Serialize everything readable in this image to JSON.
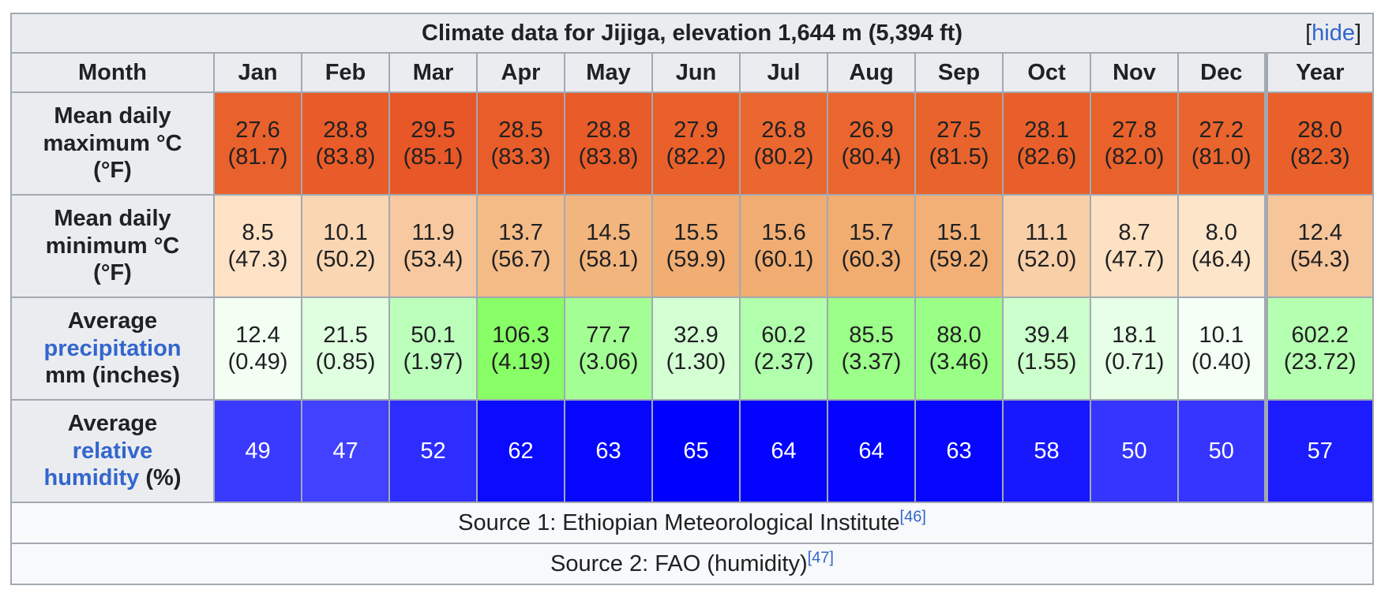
{
  "title": "Climate data for Jijiga, elevation 1,644 m (5,394 ft)",
  "hide_toggle": {
    "open": "[",
    "label": "hide",
    "close": "]"
  },
  "month_header": "Month",
  "months": [
    "Jan",
    "Feb",
    "Mar",
    "Apr",
    "May",
    "Jun",
    "Jul",
    "Aug",
    "Sep",
    "Oct",
    "Nov",
    "Dec"
  ],
  "year_header": "Year",
  "rows": [
    {
      "label_lines": [
        "Mean daily",
        "maximum °C",
        "(°F)"
      ],
      "link_lines": [],
      "values": [
        {
          "v": "27.6",
          "alt": "(81.7)",
          "bg": "#e9612c"
        },
        {
          "v": "28.8",
          "alt": "(83.8)",
          "bg": "#e95b29"
        },
        {
          "v": "29.5",
          "alt": "(85.1)",
          "bg": "#e85727"
        },
        {
          "v": "28.5",
          "alt": "(83.3)",
          "bg": "#e95d2a"
        },
        {
          "v": "28.8",
          "alt": "(83.8)",
          "bg": "#e95b29"
        },
        {
          "v": "27.9",
          "alt": "(82.2)",
          "bg": "#e9602b"
        },
        {
          "v": "26.8",
          "alt": "(80.2)",
          "bg": "#ea672f"
        },
        {
          "v": "26.9",
          "alt": "(80.4)",
          "bg": "#ea662e"
        },
        {
          "v": "27.5",
          "alt": "(81.5)",
          "bg": "#e9632c"
        },
        {
          "v": "28.1",
          "alt": "(82.6)",
          "bg": "#e95f2b"
        },
        {
          "v": "27.8",
          "alt": "(82.0)",
          "bg": "#e9612b"
        },
        {
          "v": "27.2",
          "alt": "(81.0)",
          "bg": "#ea642d"
        }
      ],
      "year": {
        "v": "28.0",
        "alt": "(82.3)",
        "bg": "#e9602b"
      }
    },
    {
      "label_lines": [
        "Mean daily",
        "minimum °C",
        "(°F)"
      ],
      "link_lines": [],
      "values": [
        {
          "v": "8.5",
          "alt": "(47.3)",
          "bg": "#fde2c6"
        },
        {
          "v": "10.1",
          "alt": "(50.2)",
          "bg": "#fad6b2"
        },
        {
          "v": "11.9",
          "alt": "(53.4)",
          "bg": "#f8c9a0"
        },
        {
          "v": "13.7",
          "alt": "(56.7)",
          "bg": "#f4bb87"
        },
        {
          "v": "14.5",
          "alt": "(58.1)",
          "bg": "#f2b57d"
        },
        {
          "v": "15.5",
          "alt": "(59.9)",
          "bg": "#f1ad72"
        },
        {
          "v": "15.6",
          "alt": "(60.1)",
          "bg": "#f1ac71"
        },
        {
          "v": "15.7",
          "alt": "(60.3)",
          "bg": "#f1ac70"
        },
        {
          "v": "15.1",
          "alt": "(59.2)",
          "bg": "#f2b076"
        },
        {
          "v": "11.1",
          "alt": "(52.0)",
          "bg": "#f9cfa8"
        },
        {
          "v": "8.7",
          "alt": "(47.7)",
          "bg": "#fde1c3"
        },
        {
          "v": "8.0",
          "alt": "(46.4)",
          "bg": "#fde5ca"
        }
      ],
      "year": {
        "v": "12.4",
        "alt": "(54.3)",
        "bg": "#f7c59a"
      }
    },
    {
      "label_lines": [
        "Average",
        "precipitation",
        "mm (inches)"
      ],
      "link_lines": [
        1
      ],
      "values": [
        {
          "v": "12.4",
          "alt": "(0.49)",
          "bg": "#f2fff2"
        },
        {
          "v": "21.5",
          "alt": "(0.85)",
          "bg": "#e0ffe0"
        },
        {
          "v": "50.1",
          "alt": "(1.97)",
          "bg": "#bbffbb"
        },
        {
          "v": "106.3",
          "alt": "(4.19)",
          "bg": "#88ff66"
        },
        {
          "v": "77.7",
          "alt": "(3.06)",
          "bg": "#a3ff93"
        },
        {
          "v": "32.9",
          "alt": "(1.30)",
          "bg": "#d3ffd3"
        },
        {
          "v": "60.2",
          "alt": "(2.37)",
          "bg": "#b1ffac"
        },
        {
          "v": "85.5",
          "alt": "(3.37)",
          "bg": "#9cff8a"
        },
        {
          "v": "88.0",
          "alt": "(3.46)",
          "bg": "#9aff86"
        },
        {
          "v": "39.4",
          "alt": "(1.55)",
          "bg": "#cbffcb"
        },
        {
          "v": "18.1",
          "alt": "(0.71)",
          "bg": "#e7ffe7"
        },
        {
          "v": "10.1",
          "alt": "(0.40)",
          "bg": "#f5fff5"
        }
      ],
      "year": {
        "v": "602.2",
        "alt": "(23.72)",
        "bg": "#b5ffb0"
      }
    },
    {
      "label_lines": [
        "Average",
        "relative",
        "humidity (%)"
      ],
      "link_lines": [
        1,
        2
      ],
      "link_split": {
        "2": [
          "humidity",
          " (%)"
        ]
      },
      "values": [
        {
          "v": "49",
          "alt": "",
          "bg": "#3a3aff"
        },
        {
          "v": "47",
          "alt": "",
          "bg": "#4141ff"
        },
        {
          "v": "52",
          "alt": "",
          "bg": "#2d2dff"
        },
        {
          "v": "62",
          "alt": "",
          "bg": "#0b0bff"
        },
        {
          "v": "63",
          "alt": "",
          "bg": "#0707ff"
        },
        {
          "v": "65",
          "alt": "",
          "bg": "#0000ff"
        },
        {
          "v": "64",
          "alt": "",
          "bg": "#0303ff"
        },
        {
          "v": "64",
          "alt": "",
          "bg": "#0303ff"
        },
        {
          "v": "63",
          "alt": "",
          "bg": "#0707ff"
        },
        {
          "v": "58",
          "alt": "",
          "bg": "#1818ff"
        },
        {
          "v": "50",
          "alt": "",
          "bg": "#3535ff"
        },
        {
          "v": "50",
          "alt": "",
          "bg": "#3535ff"
        }
      ],
      "year": {
        "v": "57",
        "alt": "",
        "bg": "#1c1cff"
      }
    }
  ],
  "sources": [
    {
      "text": "Source 1: Ethiopian Meteorological Institute",
      "ref": "[46]"
    },
    {
      "text": "Source 2: FAO (humidity)",
      "ref": "[47]"
    }
  ]
}
